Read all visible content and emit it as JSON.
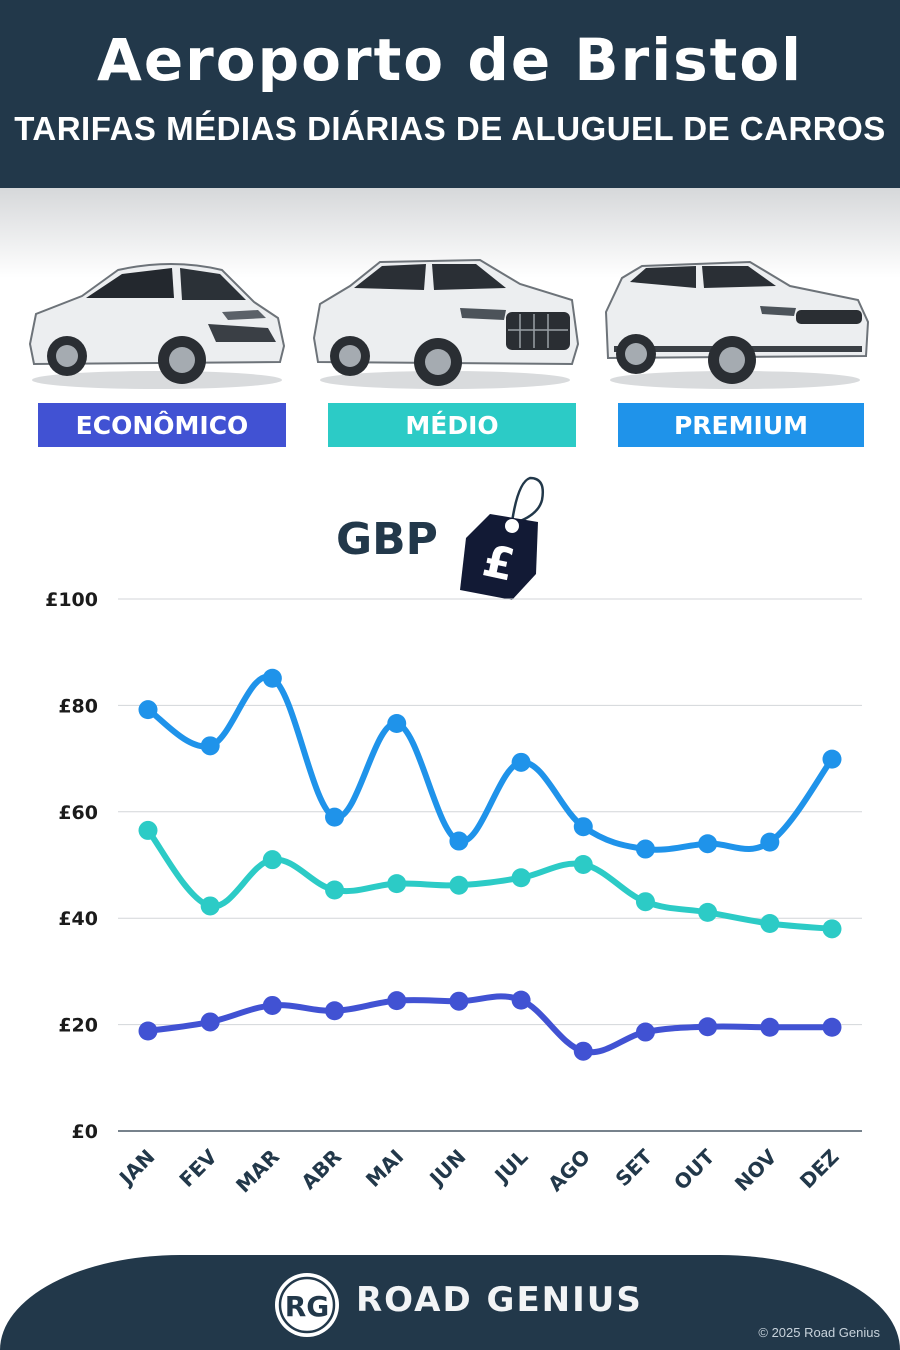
{
  "header": {
    "title": "Aeroporto de Bristol",
    "subtitle": "TARIFAS MÉDIAS DIÁRIAS DE ALUGUEL DE CARROS"
  },
  "categories": [
    {
      "label": "ECONÔMICO",
      "color": "#4152d3",
      "icon": "hatchback-car-icon"
    },
    {
      "label": "MÉDIO",
      "color": "#2ccbc6",
      "icon": "suv-car-icon"
    },
    {
      "label": "PREMIUM",
      "color": "#1f93ea",
      "icon": "luxury-suv-car-icon"
    }
  ],
  "currency": {
    "label": "GBP",
    "icon": "price-tag-icon",
    "symbol": "£"
  },
  "chart_data": {
    "type": "line",
    "categories": [
      "JAN",
      "FEV",
      "MAR",
      "ABR",
      "MAI",
      "JUN",
      "JUL",
      "AGO",
      "SET",
      "OUT",
      "NOV",
      "DEZ"
    ],
    "series": [
      {
        "name": "ECONÔMICO",
        "color": "#4152d3",
        "values": [
          18.8,
          20.5,
          23.6,
          22.6,
          24.5,
          24.4,
          24.6,
          15.0,
          18.6,
          19.6,
          19.5,
          19.5
        ]
      },
      {
        "name": "MÉDIO",
        "color": "#2ccbc6",
        "values": [
          56.5,
          42.3,
          51.0,
          45.3,
          46.5,
          46.2,
          47.6,
          50.1,
          43.1,
          41.1,
          39.0,
          38.0
        ]
      },
      {
        "name": "PREMIUM",
        "color": "#1f93ea",
        "values": [
          79.2,
          72.4,
          85.1,
          59.0,
          76.6,
          54.5,
          69.3,
          57.2,
          53.0,
          54.0,
          54.3,
          69.9
        ]
      }
    ],
    "ylim": [
      0,
      100
    ],
    "yticks": [
      0,
      20,
      40,
      60,
      80,
      100
    ],
    "ytick_labels": [
      "£0",
      "£20",
      "£40",
      "£60",
      "£80",
      "£100"
    ],
    "grid": true,
    "xlabel": "",
    "ylabel": ""
  },
  "footer": {
    "logo_text": "RG",
    "brand": "ROAD GENIUS",
    "copyright": "© 2025 Road Genius"
  }
}
